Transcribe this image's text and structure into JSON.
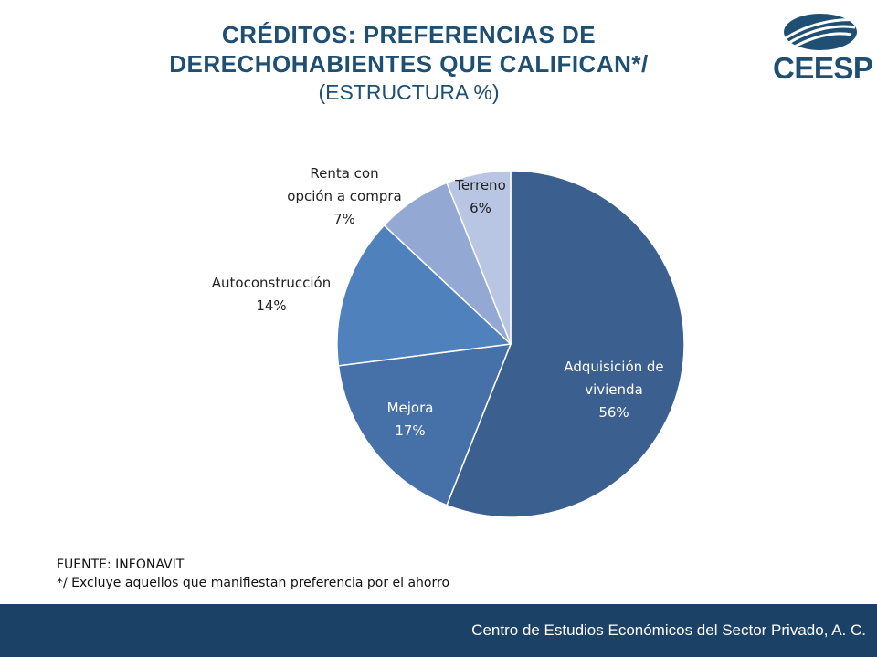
{
  "header": {
    "title_line1": "CRÉDITOS: PREFERENCIAS DE",
    "title_line2": "DERECHOHABIENTES QUE CALIFICAN*/",
    "subtitle": "(ESTRUCTURA %)"
  },
  "logo": {
    "text": "CEESP",
    "icon": "ceesp-swoosh-logo-icon",
    "color": "#1f4f73"
  },
  "chart_data": {
    "type": "pie",
    "title": "CRÉDITOS: PREFERENCIAS DE DERECHOHABIENTES QUE CALIFICAN*/",
    "subtitle": "(ESTRUCTURA %)",
    "slices": [
      {
        "label_lines": [
          "Adquisición de",
          "vivienda"
        ],
        "value": 56,
        "value_label": "56%",
        "color": "#3b5f8f",
        "label_color": "#ffffff"
      },
      {
        "label_lines": [
          "Mejora"
        ],
        "value": 17,
        "value_label": "17%",
        "color": "#4570a8",
        "label_color": "#ffffff"
      },
      {
        "label_lines": [
          "Autoconstrucción"
        ],
        "value": 14,
        "value_label": "14%",
        "color": "#4f81bd",
        "label_color": "#222222"
      },
      {
        "label_lines": [
          "Renta con",
          "opción a compra"
        ],
        "value": 7,
        "value_label": "7%",
        "color": "#93a9d3",
        "label_color": "#222222"
      },
      {
        "label_lines": [
          "Terreno"
        ],
        "value": 6,
        "value_label": "6%",
        "color": "#b9c6e3",
        "label_color": "#222222"
      }
    ]
  },
  "notes": {
    "source": "FUENTE: INFONAVIT",
    "footnote": "*/ Excluye aquellos que manifiestan preferencia por el ahorro"
  },
  "footer": {
    "text": "Centro de Estudios Económicos del Sector Privado, A. C.",
    "bar_color": "#1b4266"
  }
}
